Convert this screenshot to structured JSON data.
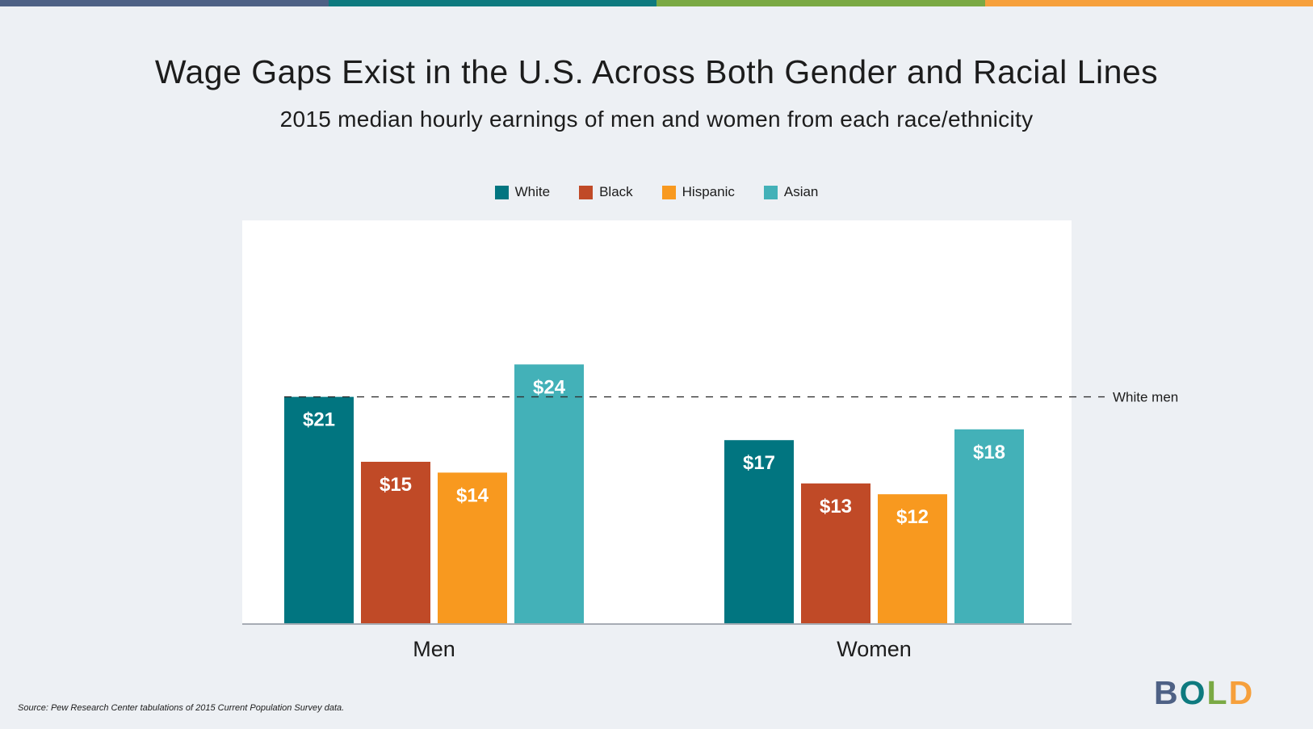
{
  "colors": {
    "top_bar": [
      "#4e6185",
      "#0e7a7f",
      "#7aa944",
      "#f6a03c"
    ],
    "white": "#017580",
    "black": "#c04a27",
    "hispanic": "#f8991f",
    "asian": "#43b1b8",
    "plot_bg": "#ffffff",
    "page_bg": "#edf0f4",
    "logo": [
      "#4e6185",
      "#0e7a7f",
      "#7aa944",
      "#f6a03c"
    ]
  },
  "logo": {
    "letters": [
      "B",
      "O",
      "L",
      "D"
    ]
  },
  "source": "Source: Pew Research Center tabulations of 2015 Current Population Survey data.",
  "chart_data": {
    "type": "bar",
    "title": "Wage Gaps Exist in the U.S. Across Both Gender and Racial Lines",
    "subtitle": "2015 median hourly earnings of men and women from each race/ethnicity",
    "categories": [
      "Men",
      "Women"
    ],
    "series": [
      {
        "name": "White",
        "values": [
          21,
          17
        ],
        "labels": [
          "$21",
          "$17"
        ]
      },
      {
        "name": "Black",
        "values": [
          15,
          13
        ],
        "labels": [
          "$15",
          "$13"
        ]
      },
      {
        "name": "Hispanic",
        "values": [
          14,
          12
        ],
        "labels": [
          "$14",
          "$12"
        ]
      },
      {
        "name": "Asian",
        "values": [
          24,
          18
        ],
        "labels": [
          "$24",
          "$18"
        ]
      }
    ],
    "reference_line": {
      "value": 21,
      "label": "White men",
      "style": "dashed"
    },
    "ylim": [
      0,
      27
    ],
    "xlabel": "",
    "ylabel": "",
    "grid": false,
    "legend_position": "top-center"
  }
}
